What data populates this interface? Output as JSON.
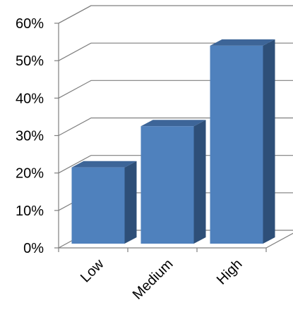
{
  "chart_data": {
    "type": "bar",
    "style": "3d-column",
    "categories": [
      "Low",
      "Medium",
      "High"
    ],
    "values": [
      21.5,
      32.5,
      54
    ],
    "unit": "%",
    "ylim": [
      0,
      60
    ],
    "yticks": [
      "0%",
      "10%",
      "20%",
      "30%",
      "40%",
      "50%",
      "60%"
    ],
    "grid": true,
    "legend": "none",
    "colors": {
      "bar_front": "#4F81BD",
      "bar_side": "#2E4F78",
      "bar_top": "#3D6598",
      "grid": "#7F7F7F",
      "axis": "#7F7F7F"
    }
  }
}
